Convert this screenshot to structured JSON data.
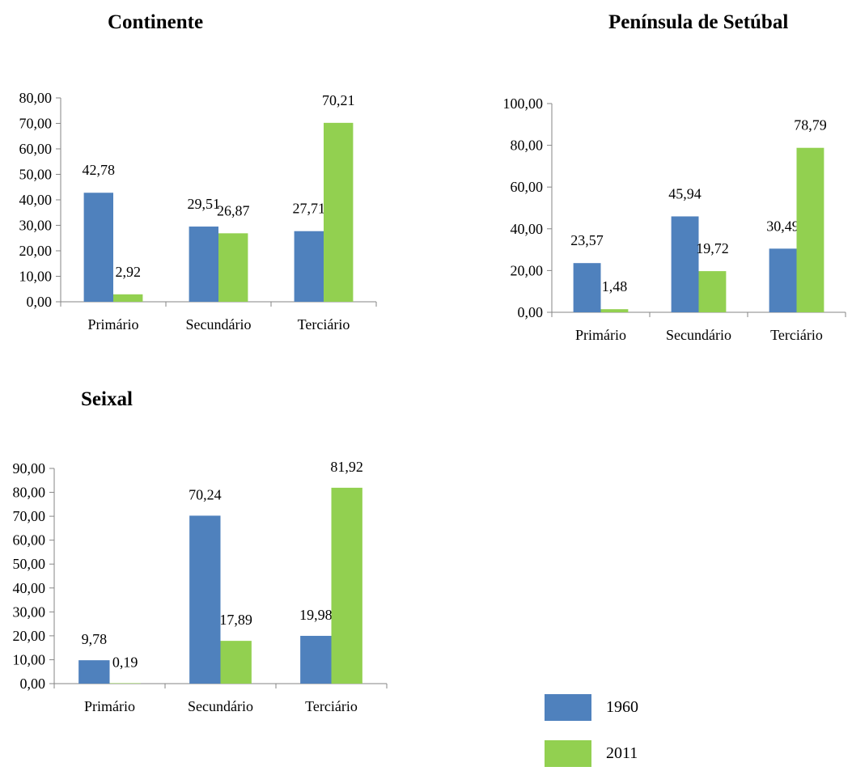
{
  "chart_data": [
    {
      "type": "bar",
      "title": "Continente",
      "categories": [
        "Primário",
        "Secundário",
        "Terciário"
      ],
      "series": [
        {
          "name": "1960",
          "values": [
            42.78,
            29.51,
            27.71
          ],
          "labels": [
            "42,78",
            "29,51",
            "27,71"
          ]
        },
        {
          "name": "2011",
          "values": [
            2.92,
            26.87,
            70.21
          ],
          "labels": [
            "2,92",
            "26,87",
            "70,21"
          ]
        }
      ],
      "ylim": [
        0,
        80
      ],
      "yticks": [
        "0,00",
        "10,00",
        "20,00",
        "30,00",
        "40,00",
        "50,00",
        "60,00",
        "70,00",
        "80,00"
      ],
      "grid": false
    },
    {
      "type": "bar",
      "title": "Península de Setúbal",
      "categories": [
        "Primário",
        "Secundário",
        "Terciário"
      ],
      "series": [
        {
          "name": "1960",
          "values": [
            23.57,
            45.94,
            30.49
          ],
          "labels": [
            "23,57",
            "45,94",
            "30,49"
          ]
        },
        {
          "name": "2011",
          "values": [
            1.48,
            19.72,
            78.79
          ],
          "labels": [
            "1,48",
            "19,72",
            "78,79"
          ]
        }
      ],
      "ylim": [
        0,
        100
      ],
      "yticks": [
        "0,00",
        "20,00",
        "40,00",
        "60,00",
        "80,00",
        "100,00"
      ],
      "grid": false
    },
    {
      "type": "bar",
      "title": "Seixal",
      "categories": [
        "Primário",
        "Secundário",
        "Terciário"
      ],
      "series": [
        {
          "name": "1960",
          "values": [
            9.78,
            70.24,
            19.98
          ],
          "labels": [
            "9,78",
            "70,24",
            "19,98"
          ]
        },
        {
          "name": "2011",
          "values": [
            0.19,
            17.89,
            81.92
          ],
          "labels": [
            "0,19",
            "17,89",
            "81,92"
          ]
        }
      ],
      "ylim": [
        0,
        90
      ],
      "yticks": [
        "0,00",
        "10,00",
        "20,00",
        "30,00",
        "40,00",
        "50,00",
        "60,00",
        "70,00",
        "80,00",
        "90,00"
      ],
      "grid": false
    }
  ],
  "legend": {
    "placement": "bottom-right",
    "items": [
      {
        "label": "1960",
        "color": "#4F81BD"
      },
      {
        "label": "2011",
        "color": "#92D050"
      }
    ]
  },
  "colors": {
    "series_1960": "#4F81BD",
    "series_2011": "#92D050",
    "axis": "#868686"
  }
}
